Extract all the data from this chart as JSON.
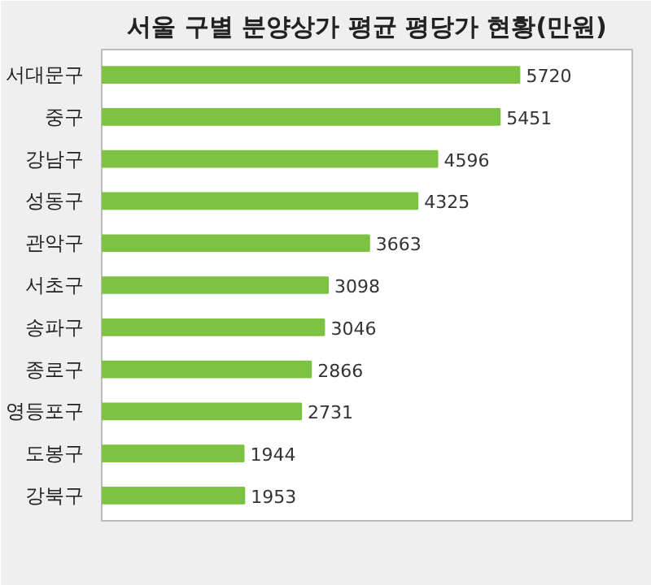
{
  "chart_data": {
    "type": "bar",
    "orientation": "horizontal",
    "title": "서울 구별 분양상가 평균 평당가 현황(만원)",
    "categories": [
      "서대문구",
      "중구",
      "강남구",
      "성동구",
      "관악구",
      "서초구",
      "송파구",
      "종로구",
      "영등포구",
      "도봉구",
      "강북구"
    ],
    "values": [
      5720,
      5451,
      4596,
      4325,
      3663,
      3098,
      3046,
      2866,
      2731,
      1944,
      1953
    ],
    "color": "#7dc242",
    "data_labels": true,
    "grid": false,
    "tick_labels": "y"
  }
}
